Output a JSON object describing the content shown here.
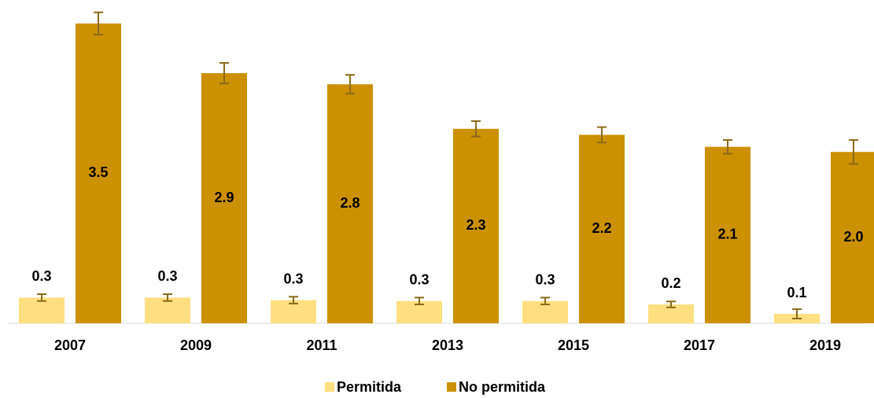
{
  "chart_data": {
    "type": "bar",
    "categories": [
      "2007",
      "2009",
      "2011",
      "2013",
      "2015",
      "2017",
      "2019"
    ],
    "series": [
      {
        "name": "Permitida",
        "color": "#ffdf80",
        "error_color": "#8b6a1a",
        "values": [
          0.3,
          0.3,
          0.27,
          0.26,
          0.26,
          0.22,
          0.11
        ],
        "value_labels": [
          "0.3",
          "0.3",
          "0.3",
          "0.3",
          "0.3",
          "0.2",
          "0.1"
        ],
        "errors": [
          0.04,
          0.04,
          0.04,
          0.04,
          0.04,
          0.035,
          0.055
        ]
      },
      {
        "name": "No permitida",
        "color": "#cc9000",
        "error_color": "#8b6a1a",
        "values": [
          3.5,
          2.92,
          2.79,
          2.27,
          2.2,
          2.06,
          2.0
        ],
        "value_labels": [
          "3.5",
          "2.9",
          "2.8",
          "2.3",
          "2.2",
          "2.1",
          "2.0"
        ],
        "errors": [
          0.13,
          0.12,
          0.11,
          0.09,
          0.09,
          0.08,
          0.14
        ]
      }
    ],
    "legend": "bottom"
  }
}
